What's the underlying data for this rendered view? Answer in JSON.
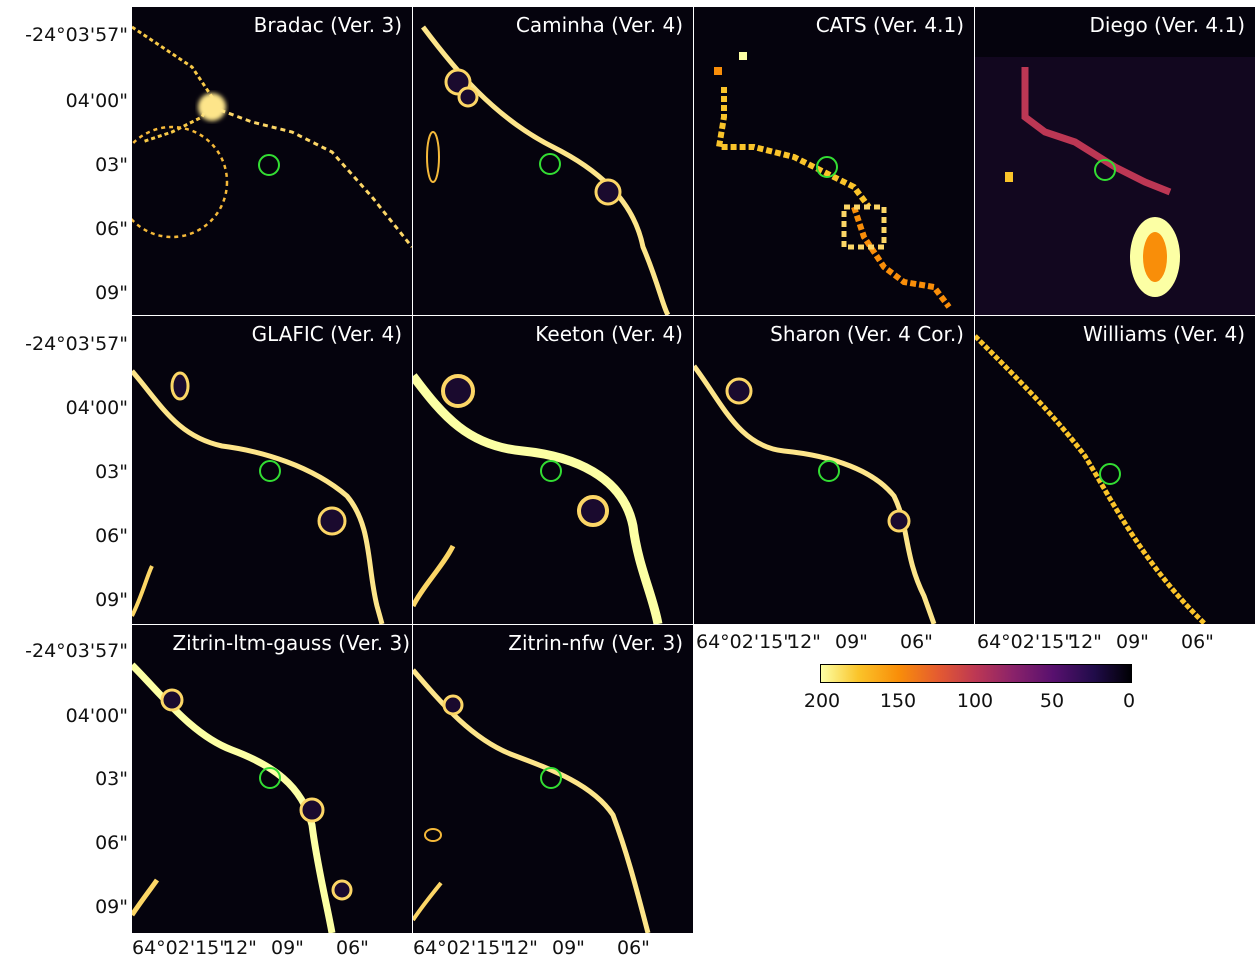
{
  "panels": [
    {
      "title": "Bradac (Ver. 3)"
    },
    {
      "title": "Caminha (Ver. 4)"
    },
    {
      "title": "CATS (Ver. 4.1)"
    },
    {
      "title": "Diego (Ver. 4.1)"
    },
    {
      "title": "GLAFIC (Ver. 4)"
    },
    {
      "title": "Keeton (Ver. 4)"
    },
    {
      "title": "Sharon (Ver. 4 Cor.)"
    },
    {
      "title": "Williams (Ver. 4)"
    },
    {
      "title": "Zitrin-ltm-gauss (Ver. 3)"
    },
    {
      "title": "Zitrin-nfw (Ver. 3)"
    }
  ],
  "axes": {
    "dec_ticks": [
      "-24°03'57\"",
      "04'00\"",
      "03\"",
      "06\"",
      "09\""
    ],
    "ra_ticks": [
      "64°02'15\"",
      "12\"",
      "09\"",
      "06\""
    ]
  },
  "colorbar": {
    "ticks": [
      "200",
      "150",
      "100",
      "50",
      "0"
    ],
    "colormap": "inferno (reversed)",
    "colors": {
      "high": "#fcffa4",
      "mid": "#bc3754",
      "low": "#000004"
    }
  },
  "marker": {
    "color": "#33dd33",
    "shape": "circle"
  }
}
